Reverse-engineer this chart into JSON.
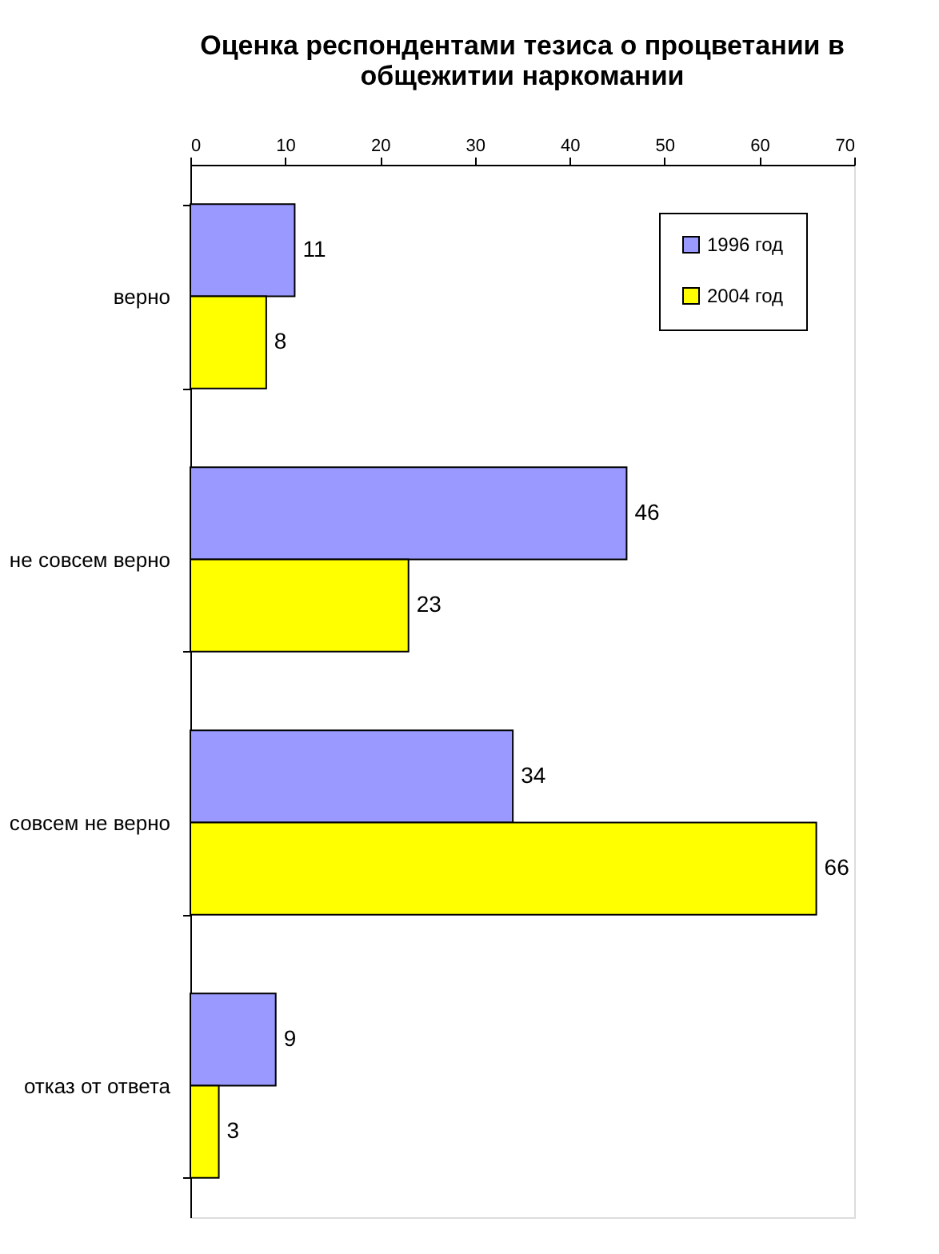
{
  "chart_data": {
    "type": "bar",
    "orientation": "horizontal",
    "title": "Оценка респондентами тезиса о процветании в общежитии наркомании",
    "categories": [
      "верно",
      "не совсем верно",
      "совсем не верно",
      "отказ от ответа"
    ],
    "series": [
      {
        "name": "1996 год",
        "color": "#9999ff",
        "values": [
          11,
          46,
          34,
          9
        ]
      },
      {
        "name": "2004 год",
        "color": "#ffff00",
        "values": [
          8,
          23,
          66,
          3
        ]
      }
    ],
    "xlim": [
      0,
      70
    ],
    "xticks": [
      0,
      10,
      20,
      30,
      40,
      50,
      60,
      70
    ],
    "data_labels": true,
    "legend": "top right",
    "grid": false
  }
}
